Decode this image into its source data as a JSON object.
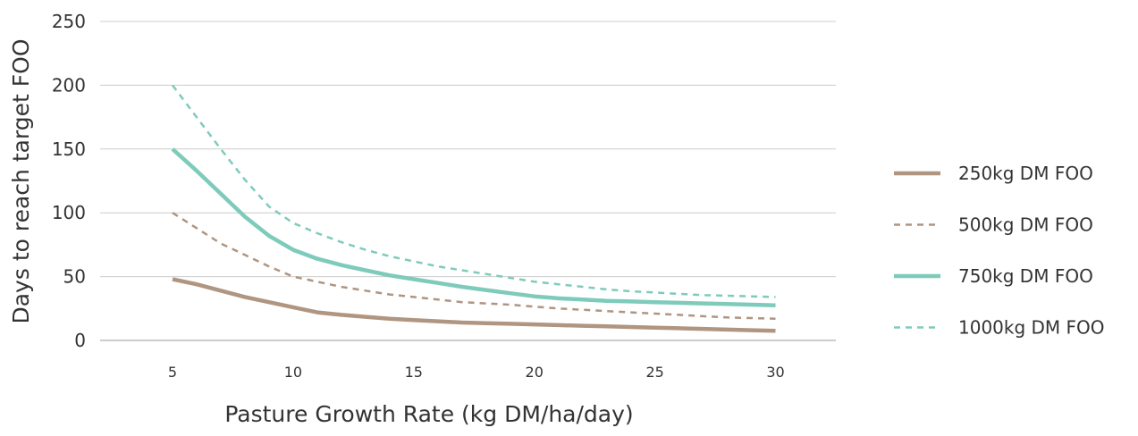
{
  "chart_data": {
    "type": "line",
    "title": "",
    "xlabel": "Pasture Growth Rate (kg DM/ha/day)",
    "ylabel": "Days to reach target FOO",
    "xlim": [
      2,
      32.5
    ],
    "ylim": [
      0,
      250
    ],
    "xticks": [
      5,
      10,
      15,
      20,
      25,
      30
    ],
    "yticks": [
      0,
      50,
      100,
      150,
      200,
      250
    ],
    "grid": "horizontal",
    "legend_position": "right",
    "x": [
      5,
      6,
      7,
      8,
      9,
      10,
      11,
      12,
      13,
      14,
      15,
      16,
      17,
      18,
      19,
      20,
      21,
      22,
      23,
      24,
      25,
      26,
      27,
      28,
      29,
      30
    ],
    "series": [
      {
        "name": "250kg DM FOO",
        "style": "solid",
        "color": "#b09580",
        "values": [
          48,
          44,
          39,
          34,
          30,
          26,
          22,
          20,
          18.5,
          17,
          16,
          15,
          14,
          13.5,
          13,
          12.5,
          12,
          11.5,
          11,
          10.5,
          10,
          9.5,
          9,
          8.5,
          8,
          7.5
        ]
      },
      {
        "name": "500kg DM FOO",
        "style": "dashed",
        "color": "#b09580",
        "values": [
          100,
          88,
          76,
          67,
          58,
          50,
          46,
          42,
          39,
          36,
          34,
          32,
          30,
          29,
          28,
          26.5,
          25,
          24,
          23,
          22,
          21,
          20,
          19,
          18,
          17.5,
          17
        ]
      },
      {
        "name": "750kg DM FOO",
        "style": "solid",
        "color": "#7ecbbb",
        "values": [
          150,
          133,
          115,
          97,
          82,
          71,
          64,
          59,
          55,
          51,
          48,
          45,
          42,
          39.5,
          37,
          34.5,
          33,
          32,
          31,
          30.5,
          30,
          29.5,
          29,
          28.5,
          28,
          27.5
        ]
      },
      {
        "name": "1000kg DM FOO",
        "style": "dashed",
        "color": "#7ecbbb",
        "values": [
          200,
          175,
          150,
          126,
          105,
          92,
          84,
          77,
          71,
          66,
          62,
          58,
          55,
          52,
          49,
          46,
          44,
          42,
          40,
          38.5,
          37.5,
          36.5,
          35.5,
          35,
          34.5,
          34
        ]
      }
    ]
  }
}
